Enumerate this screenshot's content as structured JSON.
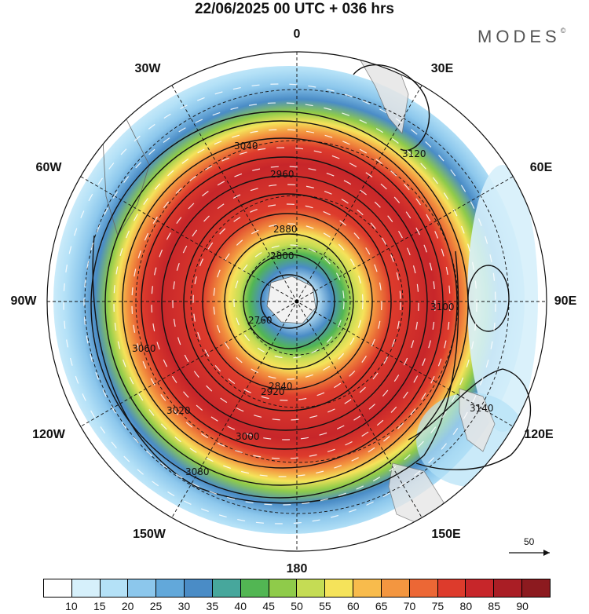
{
  "title": "22/06/2025  00 UTC  + 036 hrs",
  "logo": {
    "text": "MODES",
    "mark": "©"
  },
  "longitude_labels": {
    "lon_0": "0",
    "lon_30e": "30E",
    "lon_60e": "60E",
    "lon_90e": "90E",
    "lon_120e": "120E",
    "lon_150e": "150E",
    "lon_180": "180",
    "lon_150w": "150W",
    "lon_120w": "120W",
    "lon_90w": "90W",
    "lon_60w": "60W",
    "lon_30w": "30W"
  },
  "contours": {
    "labels": [
      "2760",
      "2800",
      "2840",
      "2880",
      "2920",
      "2960",
      "3000",
      "3020",
      "3040",
      "3060",
      "3080",
      "3100",
      "3120",
      "3140"
    ]
  },
  "reference_vector": {
    "label": "50"
  },
  "colorbar": {
    "labels": [
      "10",
      "15",
      "20",
      "25",
      "30",
      "35",
      "40",
      "45",
      "50",
      "55",
      "60",
      "65",
      "70",
      "75",
      "80",
      "85",
      "90"
    ],
    "colors": [
      "#ffffff",
      "#d6f0fb",
      "#b4e1f7",
      "#8cc7ec",
      "#62a8da",
      "#4a8cc6",
      "#47a79c",
      "#52b653",
      "#8fcb4a",
      "#c5dc54",
      "#f5e35a",
      "#f8bb4c",
      "#f39640",
      "#ec6735",
      "#dd3b2c",
      "#c7262a",
      "#aa1e25",
      "#8c1a1f"
    ]
  }
}
